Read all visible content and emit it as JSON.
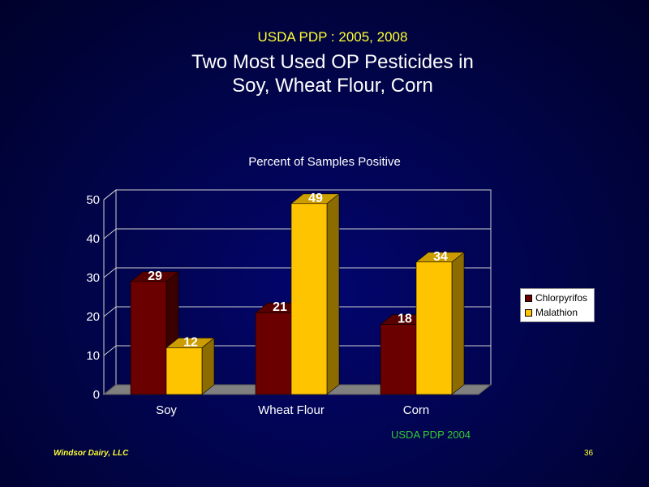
{
  "slide": {
    "supertitle": "USDA  PDP : 2005, 2008",
    "title_line1": "Two Most Used OP Pesticides in",
    "title_line2": "Soy, Wheat Flour, Corn",
    "source": "USDA PDP 2004",
    "footer": "Windsor Dairy, LLC",
    "page_number": "36"
  },
  "chart_data": {
    "type": "bar",
    "title": "Percent of Samples Positive",
    "xlabel": "",
    "ylabel": "",
    "ylim": [
      0,
      50
    ],
    "yticks": [
      0,
      10,
      20,
      30,
      40,
      50
    ],
    "categories": [
      "Soy",
      "Wheat Flour",
      "Corn"
    ],
    "series": [
      {
        "name": "Chlorpyrifos",
        "values": [
          29,
          21,
          18
        ],
        "color": "#6b0000"
      },
      {
        "name": "Malathion",
        "values": [
          12,
          49,
          34
        ],
        "color": "#ffc400"
      }
    ],
    "legend": "right",
    "grid": true
  }
}
